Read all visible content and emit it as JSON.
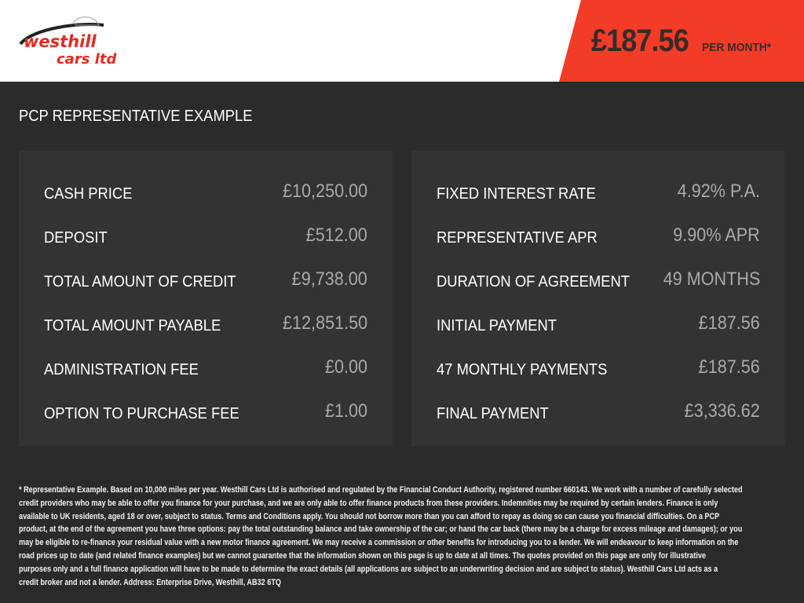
{
  "brand": {
    "logo_text_line1": "westhill",
    "logo_text_line2": "cars ltd",
    "accent": "#f23c28"
  },
  "header": {
    "price": "£187.56",
    "per_month": "PER MONTH*"
  },
  "title": "PCP REPRESENTATIVE EXAMPLE",
  "left": [
    {
      "label": "CASH PRICE",
      "value": "£10,250.00"
    },
    {
      "label": "DEPOSIT",
      "value": "£512.00"
    },
    {
      "label": "TOTAL AMOUNT OF CREDIT",
      "value": "£9,738.00"
    },
    {
      "label": "TOTAL AMOUNT PAYABLE",
      "value": "£12,851.50"
    },
    {
      "label": "ADMINISTRATION FEE",
      "value": "£0.00"
    },
    {
      "label": "OPTION TO PURCHASE FEE",
      "value": "£1.00"
    }
  ],
  "right": [
    {
      "label": "FIXED INTEREST RATE",
      "value": "4.92% P.A."
    },
    {
      "label": "REPRESENTATIVE APR",
      "value": "9.90% APR"
    },
    {
      "label": "DURATION OF AGREEMENT",
      "value": "49 MONTHS"
    },
    {
      "label": "INITIAL PAYMENT",
      "value": "£187.56"
    },
    {
      "label": "47 MONTHLY PAYMENTS",
      "value": "£187.56"
    },
    {
      "label": "FINAL PAYMENT",
      "value": "£3,336.62"
    }
  ],
  "footer_lines": [
    "* Representative Example. Based on 10,000 miles per year. Westhill Cars Ltd is authorised and regulated by the Financial Conduct Authority, registered number 660143. We work with a number of carefully selected",
    "credit providers who may be able to offer you finance for your purchase, and we are only able to offer finance products from these providers. Indemnities may be required by certain lenders. Finance is only",
    "available to UK residents, aged 18 or over, subject to status. Terms and Conditions apply. You should not borrow more than you can afford to repay as doing so can cause you financial difficulties. On a PCP",
    "product, at the end of the agreement you have three options: pay the total outstanding balance and take ownership of the car; or hand the car back (there may be a charge for excess mileage and damages); or you",
    "may be eligible to re-finance your residual value with a new motor finance agreement. We may receive a commission or other benefits for introducing you to a lender. We will endeavour to keep information on the",
    "road prices up to date (and related finance examples) but we cannot guarantee that the information shown on this page is up to date at all times. The quotes provided on this page are only for illustrative",
    "purposes only and a full finance application will have to be made to determine the exact details (all applications are subject to an underwriting decision and are subject to status). Westhill Cars Ltd acts as a",
    "credit broker and not a lender. Address: Enterprise Drive, Westhill, AB32 6TQ"
  ]
}
